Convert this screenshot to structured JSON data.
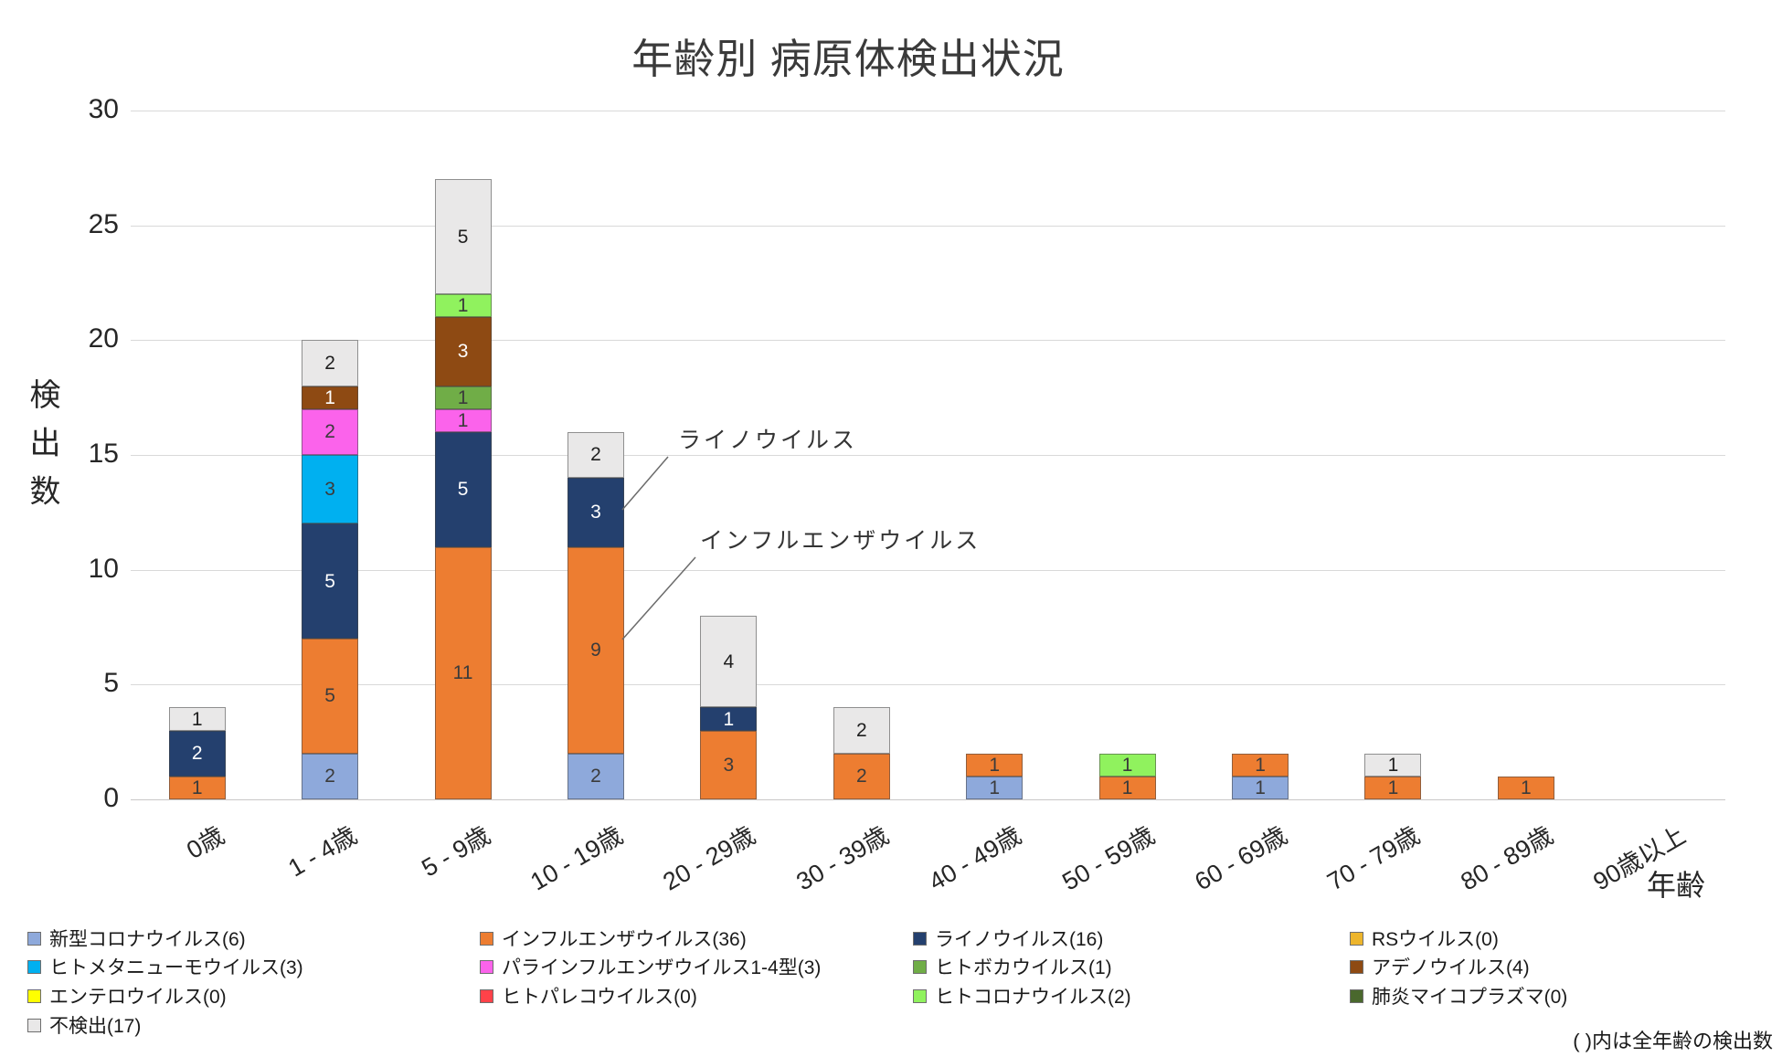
{
  "chart_data": {
    "type": "bar",
    "stacked": true,
    "title": "年齢別 病原体検出状況",
    "ylabel": "検出数",
    "xlabel": "年齢",
    "ylim": [
      0,
      30
    ],
    "yticks": [
      0,
      5,
      10,
      15,
      20,
      25,
      30
    ],
    "grid": true,
    "legend_position": "bottom",
    "note": "( )内は全年齢の検出数",
    "categories": [
      "0歳",
      "1 - 4歳",
      "5 - 9歳",
      "10 - 19歳",
      "20 - 29歳",
      "30 - 39歳",
      "40 - 49歳",
      "50 - 59歳",
      "60 - 69歳",
      "70 - 79歳",
      "80 - 89歳",
      "90歳以上"
    ],
    "series": [
      {
        "name": "新型コロナウイルス",
        "total": 6,
        "legend": "新型コロナウイルス(6)",
        "color": "#8EA9DB",
        "label_color": "#3b3b3b",
        "values": [
          0,
          2,
          0,
          2,
          0,
          0,
          1,
          0,
          1,
          0,
          0,
          0
        ]
      },
      {
        "name": "インフルエンザウイルス",
        "total": 36,
        "legend": "インフルエンザウイルス(36)",
        "color": "#ED7D31",
        "label_color": "#3b3b3b",
        "values": [
          1,
          5,
          11,
          9,
          3,
          2,
          1,
          1,
          1,
          1,
          1,
          0
        ]
      },
      {
        "name": "ライノウイルス",
        "total": 16,
        "legend": "ライノウイルス(16)",
        "color": "#24406E",
        "label_color": "#ffffff",
        "values": [
          2,
          5,
          5,
          3,
          1,
          0,
          0,
          0,
          0,
          0,
          0,
          0
        ]
      },
      {
        "name": "RSウイルス",
        "total": 0,
        "legend": "RSウイルス(0)",
        "color": "#EDB52C",
        "label_color": "#3b3b3b",
        "values": [
          0,
          0,
          0,
          0,
          0,
          0,
          0,
          0,
          0,
          0,
          0,
          0
        ]
      },
      {
        "name": "ヒトメタニューモウイルス",
        "total": 3,
        "legend": "ヒトメタニューモウイルス(3)",
        "color": "#00B0F0",
        "label_color": "#3b3b3b",
        "values": [
          0,
          3,
          0,
          0,
          0,
          0,
          0,
          0,
          0,
          0,
          0,
          0
        ]
      },
      {
        "name": "パラインフルエンザウイルス1-4型",
        "total": 3,
        "legend": "パラインフルエンザウイルス1-4型(3)",
        "color": "#FB63EB",
        "label_color": "#3b3b3b",
        "values": [
          0,
          2,
          1,
          0,
          0,
          0,
          0,
          0,
          0,
          0,
          0,
          0
        ]
      },
      {
        "name": "ヒトボカウイルス",
        "total": 1,
        "legend": "ヒトボカウイルス(1)",
        "color": "#70AD47",
        "label_color": "#3b3b3b",
        "values": [
          0,
          0,
          1,
          0,
          0,
          0,
          0,
          0,
          0,
          0,
          0,
          0
        ]
      },
      {
        "name": "アデノウイルス",
        "total": 4,
        "legend": "アデノウイルス(4)",
        "color": "#8E4A13",
        "label_color": "#ffffff",
        "values": [
          0,
          1,
          3,
          0,
          0,
          0,
          0,
          0,
          0,
          0,
          0,
          0
        ]
      },
      {
        "name": "エンテロウイルス",
        "total": 0,
        "legend": "エンテロウイルス(0)",
        "color": "#FFFF00",
        "label_color": "#3b3b3b",
        "values": [
          0,
          0,
          0,
          0,
          0,
          0,
          0,
          0,
          0,
          0,
          0,
          0
        ]
      },
      {
        "name": "ヒトパレコウイルス",
        "total": 0,
        "legend": "ヒトパレコウイルス(0)",
        "color": "#FF4249",
        "label_color": "#3b3b3b",
        "values": [
          0,
          0,
          0,
          0,
          0,
          0,
          0,
          0,
          0,
          0,
          0,
          0
        ]
      },
      {
        "name": "ヒトコロナウイルス",
        "total": 2,
        "legend": "ヒトコロナウイルス(2)",
        "color": "#90F25E",
        "label_color": "#3b3b3b",
        "values": [
          0,
          0,
          1,
          0,
          0,
          0,
          0,
          1,
          0,
          0,
          0,
          0
        ]
      },
      {
        "name": "肺炎マイコプラズマ",
        "total": 0,
        "legend": "肺炎マイコプラズマ(0)",
        "color": "#4A682D",
        "label_color": "#ffffff",
        "values": [
          0,
          0,
          0,
          0,
          0,
          0,
          0,
          0,
          0,
          0,
          0,
          0
        ]
      },
      {
        "name": "不検出",
        "total": 17,
        "legend": "不検出(17)",
        "color": "#E9E8E8",
        "label_color": "#1f1f1f",
        "values": [
          1,
          2,
          5,
          2,
          4,
          2,
          0,
          0,
          0,
          1,
          0,
          0
        ]
      }
    ],
    "annotations": [
      {
        "text": "ライノウイルス",
        "x": 742,
        "y": 462,
        "line": [
          731,
          500,
          681,
          558
        ]
      },
      {
        "text": "インフルエンザウイルス",
        "x": 766,
        "y": 572,
        "line": [
          761,
          610,
          681,
          700
        ]
      }
    ]
  }
}
